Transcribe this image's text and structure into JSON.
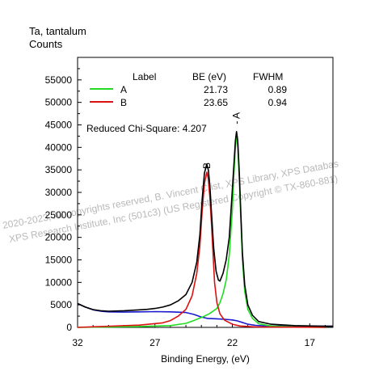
{
  "header": {
    "element_label": "Ta, tantalum",
    "y_unit": "Counts"
  },
  "legend": {
    "col_label": "Label",
    "col_be": "BE (eV)",
    "col_fwhm": "FWHM",
    "rows": [
      {
        "label": "A",
        "be": "21.73",
        "fwhm": "0.89",
        "color": "#22dd22"
      },
      {
        "label": "B",
        "be": "23.65",
        "fwhm": "0.94",
        "color": "#dd1111"
      }
    ]
  },
  "chi_square": "Reduced Chi-Square: 4.207",
  "watermark": {
    "line1": "2020-2023, All copyrights reserved,   B. Vincent Crist,   XPS Library, XPS Databas",
    "line2": "XPS Research Institute, Inc (501c3)   (US Registered Copyright © TX-860-881)"
  },
  "peak_labels": [
    "A",
    "B"
  ],
  "colors": {
    "envelope": "#000000",
    "background": "#1a1acc",
    "peak_a": "#22dd22",
    "peak_b": "#dd1111"
  },
  "chart_data": {
    "type": "line",
    "xlabel": "Binding Energy, (eV)",
    "ylabel": "Counts",
    "xlim": [
      32,
      15.5
    ],
    "ylim": [
      0,
      60000
    ],
    "x_reversed": true,
    "x_ticks": [
      32,
      27,
      22,
      17
    ],
    "y_ticks": [
      0,
      5000,
      10000,
      15000,
      20000,
      25000,
      30000,
      35000,
      40000,
      45000,
      50000,
      55000
    ],
    "grid": false,
    "series": [
      {
        "name": "A",
        "values": [
          [
            32,
            0
          ],
          [
            28,
            200
          ],
          [
            26,
            400
          ],
          [
            25,
            900
          ],
          [
            24.5,
            1500
          ],
          [
            24,
            2200
          ],
          [
            23.5,
            3000
          ],
          [
            23,
            4200
          ],
          [
            22.8,
            5500
          ],
          [
            22.6,
            7500
          ],
          [
            22.4,
            10500
          ],
          [
            22.2,
            16000
          ],
          [
            22.0,
            26000
          ],
          [
            21.9,
            34000
          ],
          [
            21.8,
            40000
          ],
          [
            21.73,
            43000
          ],
          [
            21.65,
            40000
          ],
          [
            21.55,
            33000
          ],
          [
            21.45,
            24000
          ],
          [
            21.35,
            15000
          ],
          [
            21.2,
            8000
          ],
          [
            21.0,
            4000
          ],
          [
            20.7,
            2000
          ],
          [
            20.3,
            800
          ],
          [
            19.5,
            300
          ],
          [
            18,
            100
          ],
          [
            16,
            0
          ]
        ]
      },
      {
        "name": "B",
        "values": [
          [
            32,
            0
          ],
          [
            28,
            500
          ],
          [
            26.5,
            1000
          ],
          [
            26,
            1500
          ],
          [
            25.5,
            2500
          ],
          [
            25,
            4000
          ],
          [
            24.6,
            7000
          ],
          [
            24.3,
            12000
          ],
          [
            24.1,
            18000
          ],
          [
            23.95,
            26000
          ],
          [
            23.8,
            32000
          ],
          [
            23.65,
            34500
          ],
          [
            23.55,
            33000
          ],
          [
            23.45,
            29000
          ],
          [
            23.35,
            23000
          ],
          [
            23.25,
            16500
          ],
          [
            23.15,
            10000
          ],
          [
            23.0,
            5500
          ],
          [
            22.8,
            3000
          ],
          [
            22.5,
            1600
          ],
          [
            22.0,
            700
          ],
          [
            21.5,
            300
          ],
          [
            20.5,
            100
          ],
          [
            16,
            0
          ]
        ]
      },
      {
        "name": "Background",
        "values": [
          [
            32,
            5300
          ],
          [
            31.5,
            4500
          ],
          [
            31,
            3900
          ],
          [
            30.5,
            3600
          ],
          [
            30,
            3450
          ],
          [
            29,
            3400
          ],
          [
            28,
            3450
          ],
          [
            27,
            3500
          ],
          [
            26,
            3450
          ],
          [
            25,
            3300
          ],
          [
            24.5,
            2900
          ],
          [
            24,
            2300
          ],
          [
            23.6,
            2000
          ],
          [
            23,
            1900
          ],
          [
            22.5,
            1800
          ],
          [
            22,
            1650
          ],
          [
            21.7,
            1450
          ],
          [
            21.3,
            1050
          ],
          [
            21,
            700
          ],
          [
            20.5,
            450
          ],
          [
            20,
            350
          ],
          [
            19,
            300
          ],
          [
            18,
            280
          ],
          [
            17,
            260
          ],
          [
            16,
            250
          ],
          [
            15.5,
            250
          ]
        ]
      },
      {
        "name": "Envelope",
        "values": [
          [
            32,
            5300
          ],
          [
            31.5,
            4500
          ],
          [
            31,
            3950
          ],
          [
            30.5,
            3700
          ],
          [
            30,
            3600
          ],
          [
            29,
            3700
          ],
          [
            28,
            3900
          ],
          [
            27.5,
            4000
          ],
          [
            27,
            4200
          ],
          [
            26.5,
            4500
          ],
          [
            26,
            5000
          ],
          [
            25.5,
            5900
          ],
          [
            25,
            7300
          ],
          [
            24.6,
            10000
          ],
          [
            24.3,
            14500
          ],
          [
            24.1,
            20500
          ],
          [
            23.95,
            28500
          ],
          [
            23.8,
            34300
          ],
          [
            23.65,
            36300
          ],
          [
            23.55,
            35000
          ],
          [
            23.45,
            31500
          ],
          [
            23.35,
            25500
          ],
          [
            23.2,
            17500
          ],
          [
            23.05,
            12500
          ],
          [
            22.9,
            10500
          ],
          [
            22.8,
            10300
          ],
          [
            22.6,
            12000
          ],
          [
            22.4,
            15000
          ],
          [
            22.2,
            20000
          ],
          [
            22.05,
            28000
          ],
          [
            21.9,
            36000
          ],
          [
            21.8,
            41500
          ],
          [
            21.73,
            43500
          ],
          [
            21.65,
            41500
          ],
          [
            21.55,
            34500
          ],
          [
            21.45,
            25500
          ],
          [
            21.35,
            16500
          ],
          [
            21.2,
            9500
          ],
          [
            21.0,
            5000
          ],
          [
            20.7,
            2700
          ],
          [
            20.3,
            1300
          ],
          [
            19.5,
            700
          ],
          [
            18,
            400
          ],
          [
            16,
            250
          ],
          [
            15.5,
            250
          ]
        ]
      }
    ]
  }
}
